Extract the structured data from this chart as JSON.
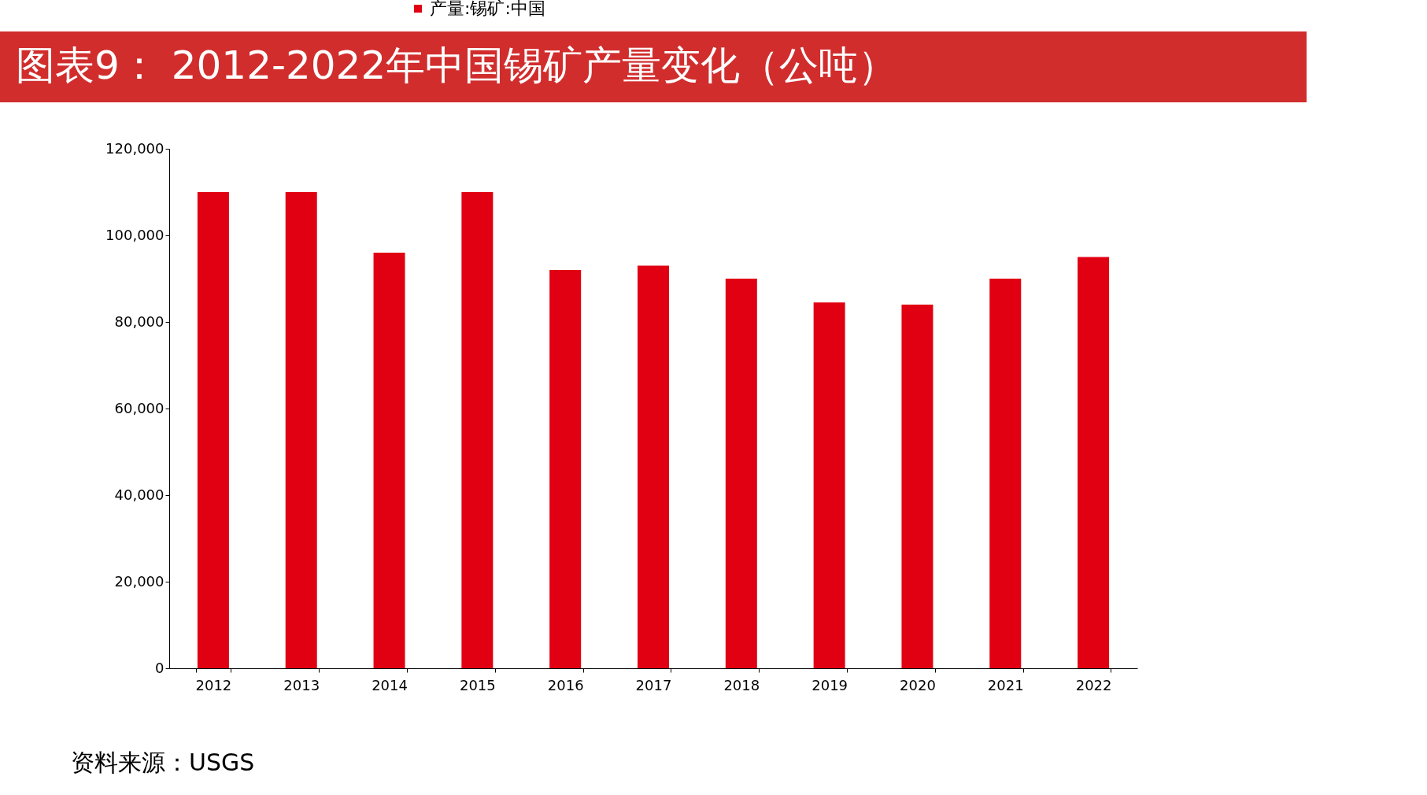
{
  "chart_data": {
    "type": "bar",
    "title": "图表9： 2012-2022年中国锡矿产量变化（公吨）",
    "categories": [
      "2012",
      "2013",
      "2014",
      "2015",
      "2016",
      "2017",
      "2018",
      "2019",
      "2020",
      "2021",
      "2022"
    ],
    "series": [
      {
        "name": "产量:锡矿:中国",
        "color": "#e00012",
        "values": [
          110000,
          110000,
          96000,
          110000,
          92000,
          93000,
          90000,
          84500,
          84000,
          90000,
          95000
        ]
      }
    ],
    "ylim": [
      0,
      120000
    ],
    "yticks": [
      0,
      {
        "value": 20000,
        "label": "20,000"
      },
      {
        "value": 40000,
        "label": "40,000"
      },
      {
        "value": 60000,
        "label": "60,000"
      },
      {
        "value": 80000,
        "label": "80,000"
      },
      {
        "value": 100000,
        "label": "100,000"
      },
      {
        "value": 120000,
        "label": "120,000"
      }
    ],
    "grid": false,
    "legend": "top",
    "annotations": [
      "资料来源：USGS"
    ]
  }
}
